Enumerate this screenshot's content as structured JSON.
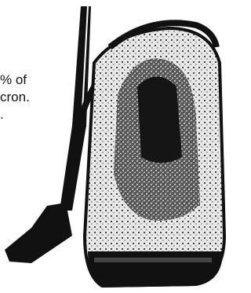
{
  "text_lines": [
    "% of",
    "cron.",
    "."
  ]
}
